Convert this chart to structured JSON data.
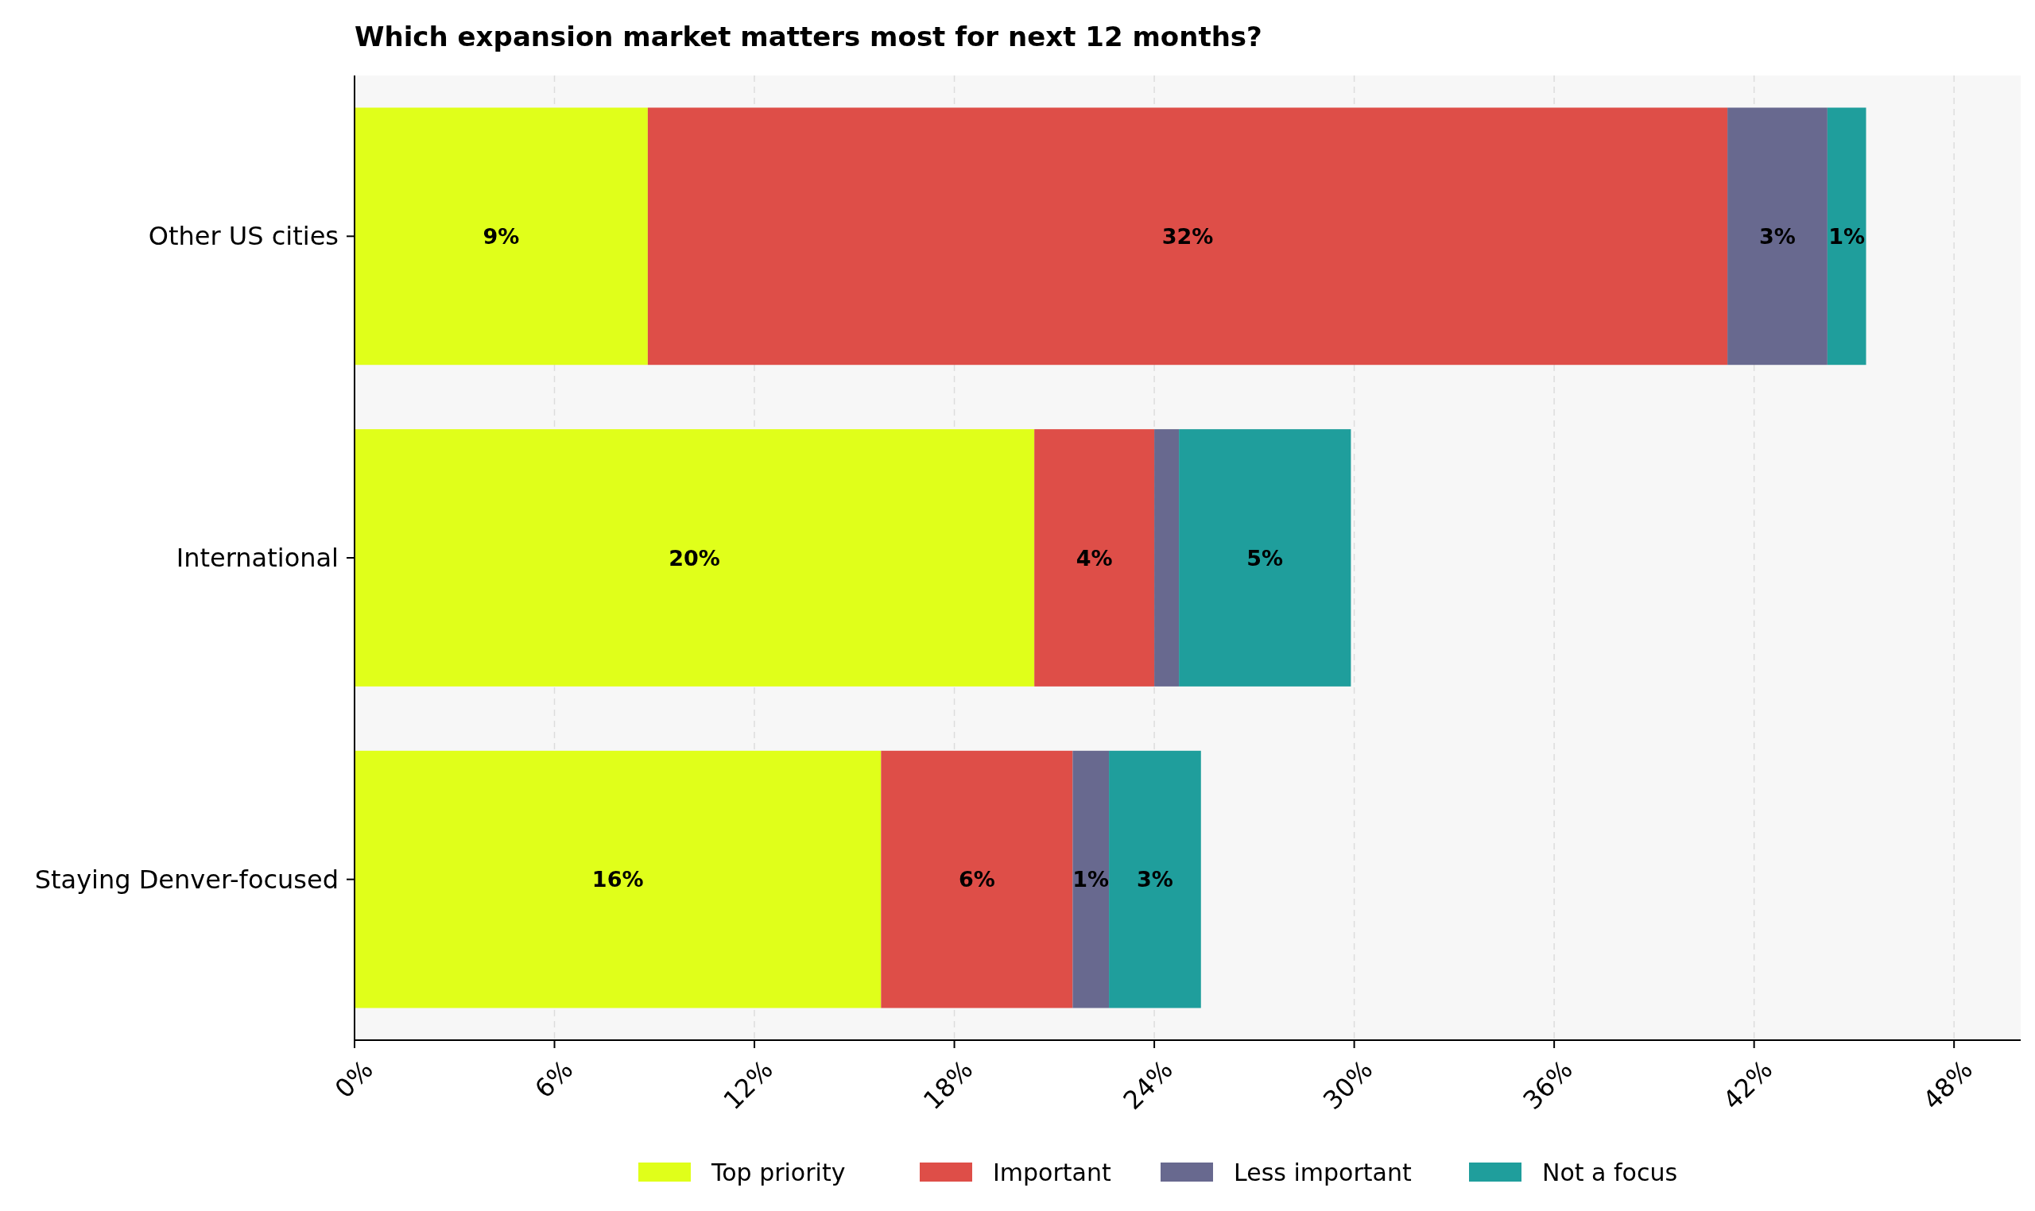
{
  "chart_data": {
    "type": "bar",
    "orientation": "horizontal",
    "stacked": true,
    "title": "Which expansion market matters most for next 12 months?",
    "categories": [
      "Other US cities",
      "International",
      "Staying Denver-focused"
    ],
    "series": [
      {
        "name": "Top priority",
        "color": "#e0ff1a",
        "values": [
          8.8,
          20.4,
          15.8
        ],
        "value_labels": [
          "9%",
          "20%",
          "16%"
        ]
      },
      {
        "name": "Important",
        "color": "#de4e48",
        "values": [
          32.4,
          3.6,
          5.75
        ],
        "value_labels": [
          "32%",
          "4%",
          "6%"
        ]
      },
      {
        "name": "Less important",
        "color": "#68698f",
        "values": [
          3.0,
          0.74,
          1.09
        ],
        "value_labels": [
          "3%",
          null,
          "1%"
        ]
      },
      {
        "name": "Not a focus",
        "color": "#1f9e9c",
        "values": [
          1.16,
          5.16,
          2.76
        ],
        "value_labels": [
          "1%",
          "5%",
          "3%"
        ]
      }
    ],
    "xlim": [
      0,
      50
    ],
    "xticks": [
      {
        "value": 0,
        "label": "0%"
      },
      {
        "value": 6,
        "label": "6%"
      },
      {
        "value": 12,
        "label": "12%"
      },
      {
        "value": 18,
        "label": "18%"
      },
      {
        "value": 24,
        "label": "24%"
      },
      {
        "value": 30,
        "label": "30%"
      },
      {
        "value": 36,
        "label": "36%"
      },
      {
        "value": 42,
        "label": "42%"
      },
      {
        "value": 48,
        "label": "48%"
      }
    ],
    "grid": "x",
    "legend": "bottom"
  }
}
